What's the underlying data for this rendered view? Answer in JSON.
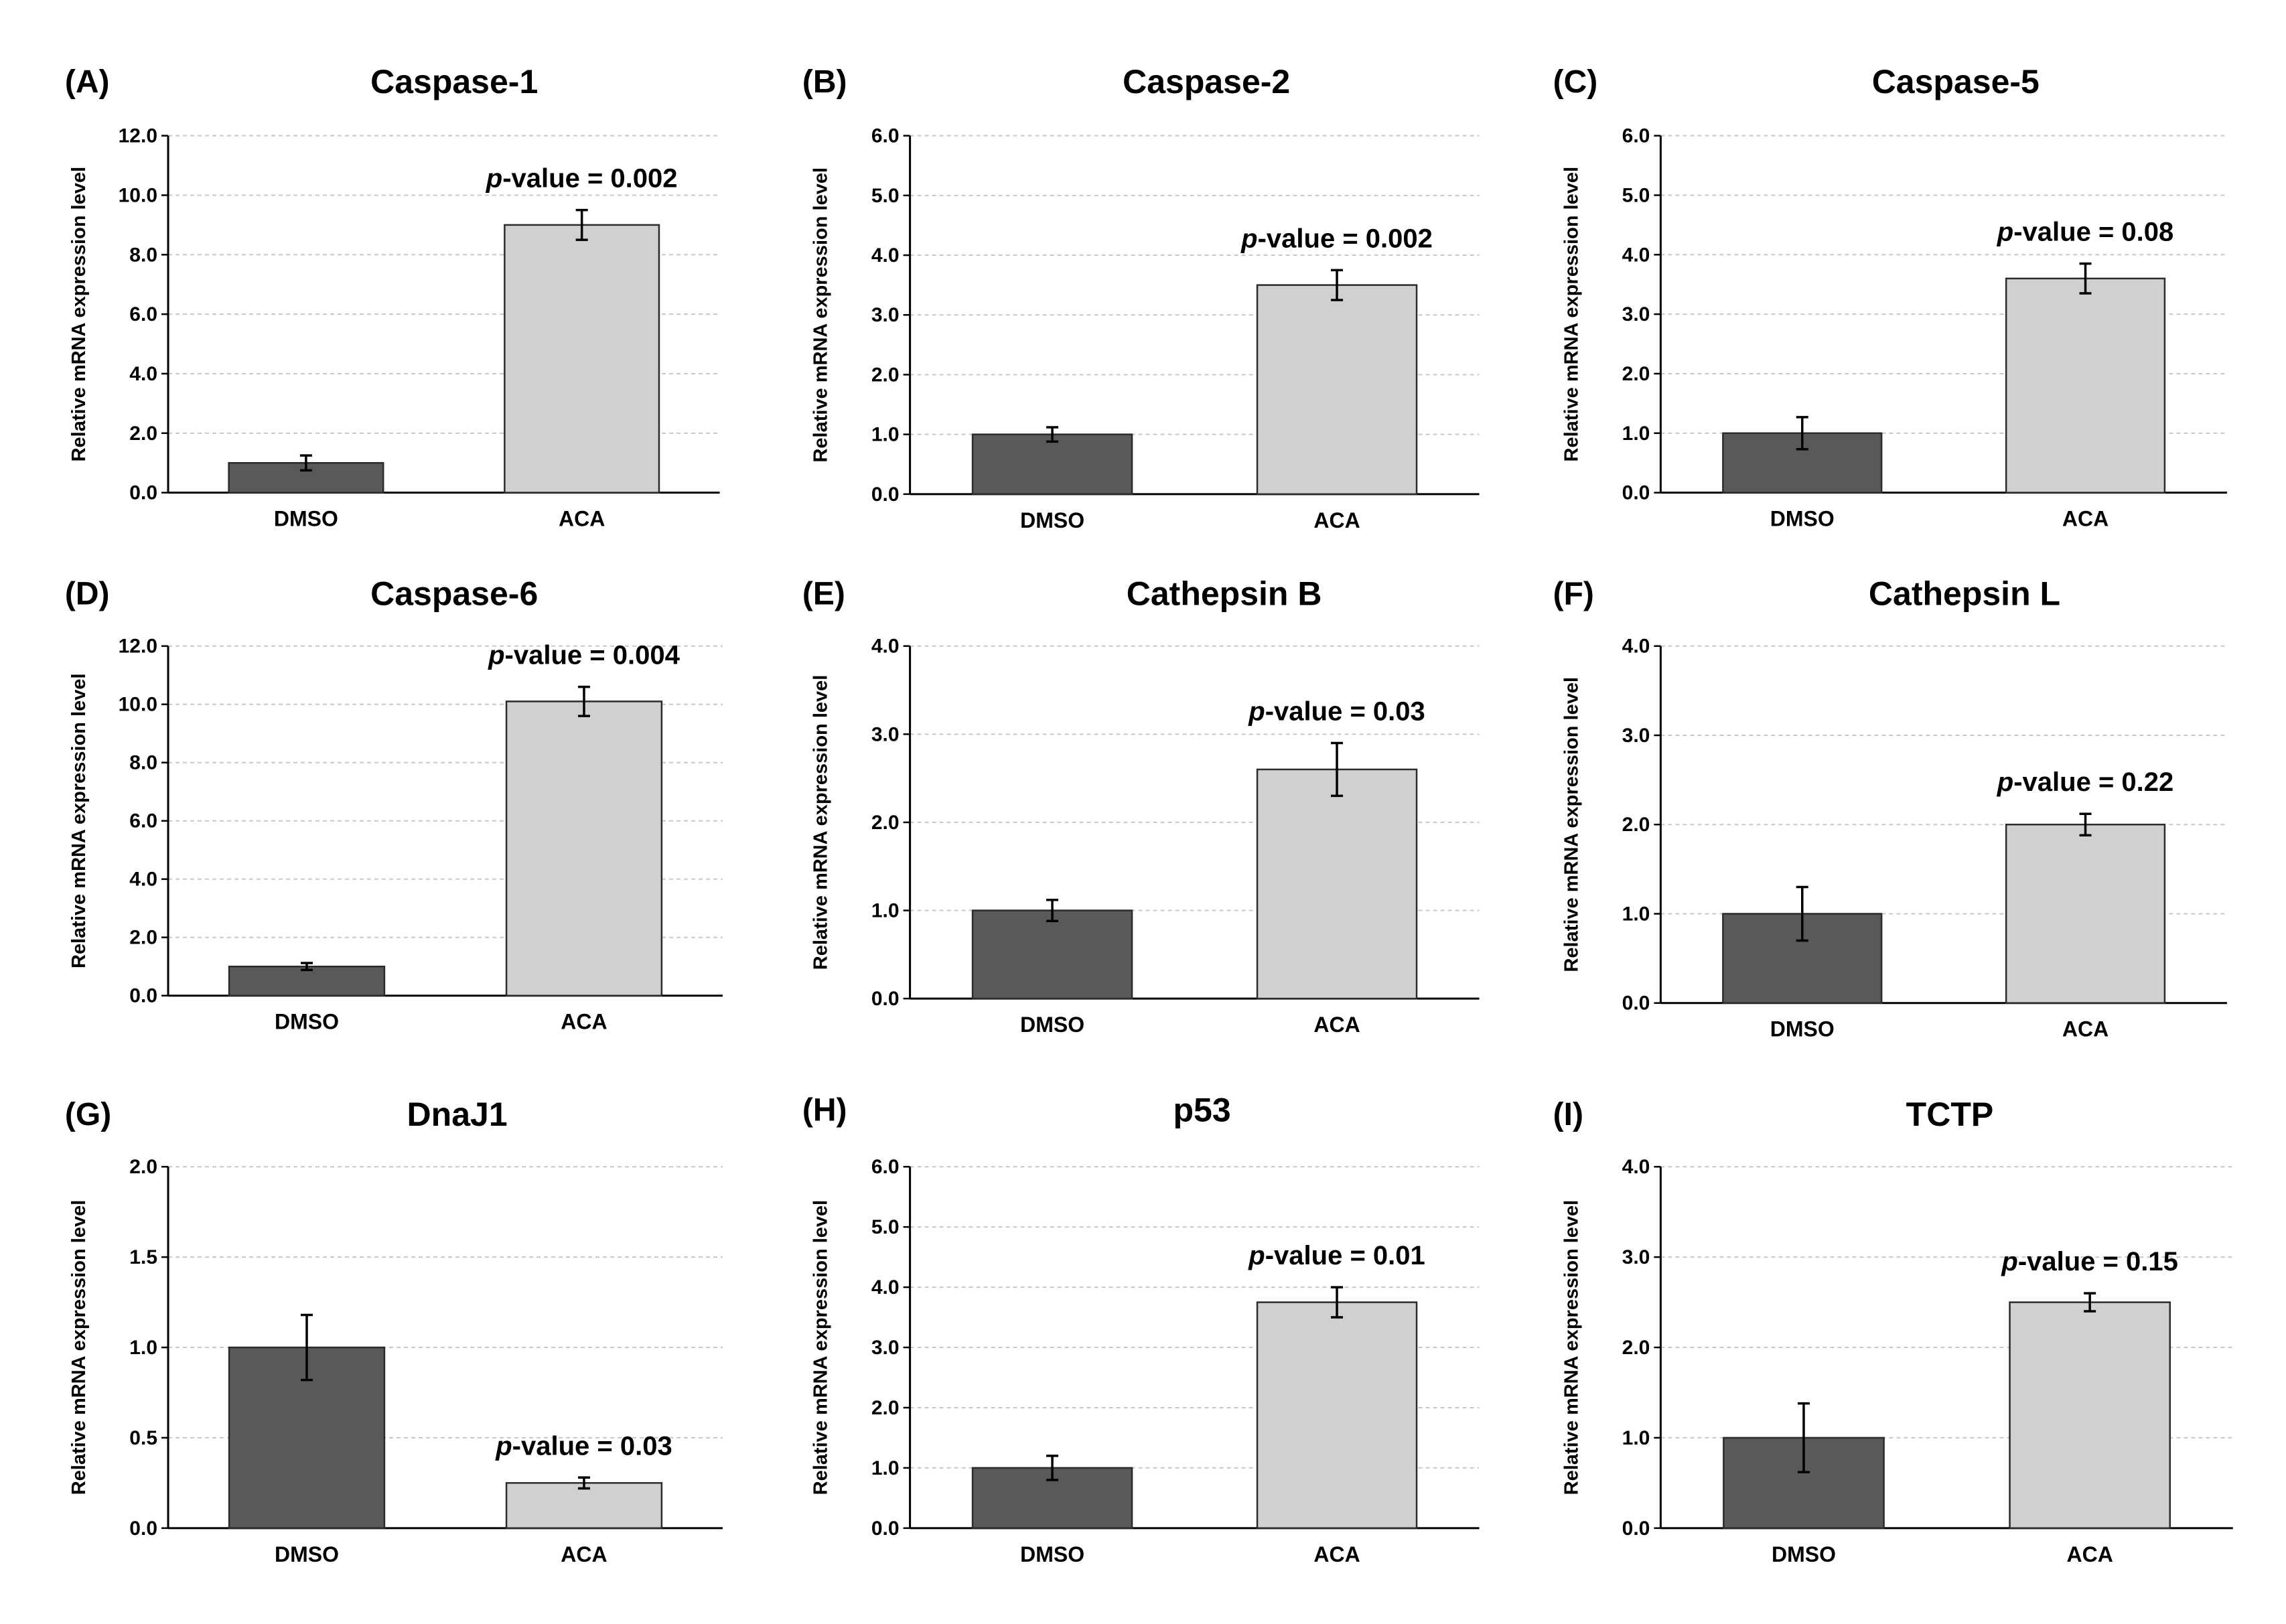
{
  "chart_data": [
    {
      "type": "bar",
      "panel_label": "(A)",
      "title": "Caspase-1",
      "xlabel": "",
      "ylabel": "Relative mRNA expression level",
      "categories": [
        "DMSO",
        "ACA"
      ],
      "values": [
        1.0,
        9.0
      ],
      "errors": [
        0.25,
        0.5
      ],
      "bar_colors": [
        "#595959",
        "#d0d0d0"
      ],
      "ylim": [
        0,
        12
      ],
      "yticks": [
        "0.0",
        "2.0",
        "4.0",
        "6.0",
        "8.0",
        "10.0",
        "12.0"
      ],
      "grid": true,
      "annotation": {
        "italic": "p",
        "text": "-value = 0.002"
      }
    },
    {
      "type": "bar",
      "panel_label": "(B)",
      "title": "Caspase-2",
      "xlabel": "",
      "ylabel": "Relative mRNA expression level",
      "categories": [
        "DMSO",
        "ACA"
      ],
      "values": [
        1.0,
        3.5
      ],
      "errors": [
        0.12,
        0.25
      ],
      "bar_colors": [
        "#595959",
        "#d0d0d0"
      ],
      "ylim": [
        0,
        6
      ],
      "yticks": [
        "0.0",
        "1.0",
        "2.0",
        "3.0",
        "4.0",
        "5.0",
        "6.0"
      ],
      "grid": true,
      "annotation": {
        "italic": "p",
        "text": "-value = 0.002"
      }
    },
    {
      "type": "bar",
      "panel_label": "(C)",
      "title": "Caspase-5",
      "xlabel": "",
      "ylabel": "Relative mRNA expression level",
      "categories": [
        "DMSO",
        "ACA"
      ],
      "values": [
        1.0,
        3.6
      ],
      "errors": [
        0.27,
        0.25
      ],
      "bar_colors": [
        "#595959",
        "#d0d0d0"
      ],
      "ylim": [
        0,
        6
      ],
      "yticks": [
        "0.0",
        "1.0",
        "2.0",
        "3.0",
        "4.0",
        "5.0",
        "6.0"
      ],
      "grid": true,
      "annotation": {
        "italic": "p",
        "text": "-value = 0.08"
      }
    },
    {
      "type": "bar",
      "panel_label": "(D)",
      "title": "Caspase-6",
      "xlabel": "",
      "ylabel": "Relative mRNA expression level",
      "categories": [
        "DMSO",
        "ACA"
      ],
      "values": [
        1.0,
        10.1
      ],
      "errors": [
        0.12,
        0.5
      ],
      "bar_colors": [
        "#595959",
        "#d0d0d0"
      ],
      "ylim": [
        0,
        12
      ],
      "yticks": [
        "0.0",
        "2.0",
        "4.0",
        "6.0",
        "8.0",
        "10.0",
        "12.0"
      ],
      "grid": true,
      "annotation": {
        "italic": "p",
        "text": "-value = 0.004"
      }
    },
    {
      "type": "bar",
      "panel_label": "(E)",
      "title": "Cathepsin B",
      "xlabel": "",
      "ylabel": "Relative mRNA expression level",
      "categories": [
        "DMSO",
        "ACA"
      ],
      "values": [
        1.0,
        2.6
      ],
      "errors": [
        0.12,
        0.3
      ],
      "bar_colors": [
        "#595959",
        "#d0d0d0"
      ],
      "ylim": [
        0,
        4
      ],
      "yticks": [
        "0.0",
        "1.0",
        "2.0",
        "3.0",
        "4.0"
      ],
      "grid": true,
      "annotation": {
        "italic": "p",
        "text": "-value = 0.03"
      }
    },
    {
      "type": "bar",
      "panel_label": "(F)",
      "title": "Cathepsin L",
      "xlabel": "",
      "ylabel": "Relative mRNA expression level",
      "categories": [
        "DMSO",
        "ACA"
      ],
      "values": [
        1.0,
        2.0
      ],
      "errors": [
        0.3,
        0.12
      ],
      "bar_colors": [
        "#595959",
        "#d0d0d0"
      ],
      "ylim": [
        0,
        4
      ],
      "yticks": [
        "0.0",
        "1.0",
        "2.0",
        "3.0",
        "4.0"
      ],
      "grid": true,
      "annotation": {
        "italic": "p",
        "text": "-value = 0.22"
      }
    },
    {
      "type": "bar",
      "panel_label": "(G)",
      "title": "DnaJ1",
      "xlabel": "",
      "ylabel": "Relative mRNA expression level",
      "categories": [
        "DMSO",
        "ACA"
      ],
      "values": [
        1.0,
        0.25
      ],
      "errors": [
        0.18,
        0.03
      ],
      "bar_colors": [
        "#595959",
        "#d0d0d0"
      ],
      "ylim": [
        0,
        2
      ],
      "yticks": [
        "0.0",
        "0.5",
        "1.0",
        "1.5",
        "2.0"
      ],
      "grid": true,
      "annotation": {
        "italic": "p",
        "text": "-value = 0.03"
      }
    },
    {
      "type": "bar",
      "panel_label": "(H)",
      "title": "p53",
      "xlabel": "",
      "ylabel": "Relative mRNA expression level",
      "categories": [
        "DMSO",
        "ACA"
      ],
      "values": [
        1.0,
        3.75
      ],
      "errors": [
        0.2,
        0.25
      ],
      "bar_colors": [
        "#595959",
        "#d0d0d0"
      ],
      "ylim": [
        0,
        6
      ],
      "yticks": [
        "0.0",
        "1.0",
        "2.0",
        "3.0",
        "4.0",
        "5.0",
        "6.0"
      ],
      "grid": true,
      "annotation": {
        "italic": "p",
        "text": "-value = 0.01"
      }
    },
    {
      "type": "bar",
      "panel_label": "(I)",
      "title": "TCTP",
      "xlabel": "",
      "ylabel": "Relative mRNA expression level",
      "categories": [
        "DMSO",
        "ACA"
      ],
      "values": [
        1.0,
        2.5
      ],
      "errors": [
        0.38,
        0.1
      ],
      "bar_colors": [
        "#595959",
        "#d0d0d0"
      ],
      "ylim": [
        0,
        4
      ],
      "yticks": [
        "0.0",
        "1.0",
        "2.0",
        "3.0",
        "4.0"
      ],
      "grid": true,
      "annotation": {
        "italic": "p",
        "text": "-value = 0.15"
      }
    }
  ]
}
